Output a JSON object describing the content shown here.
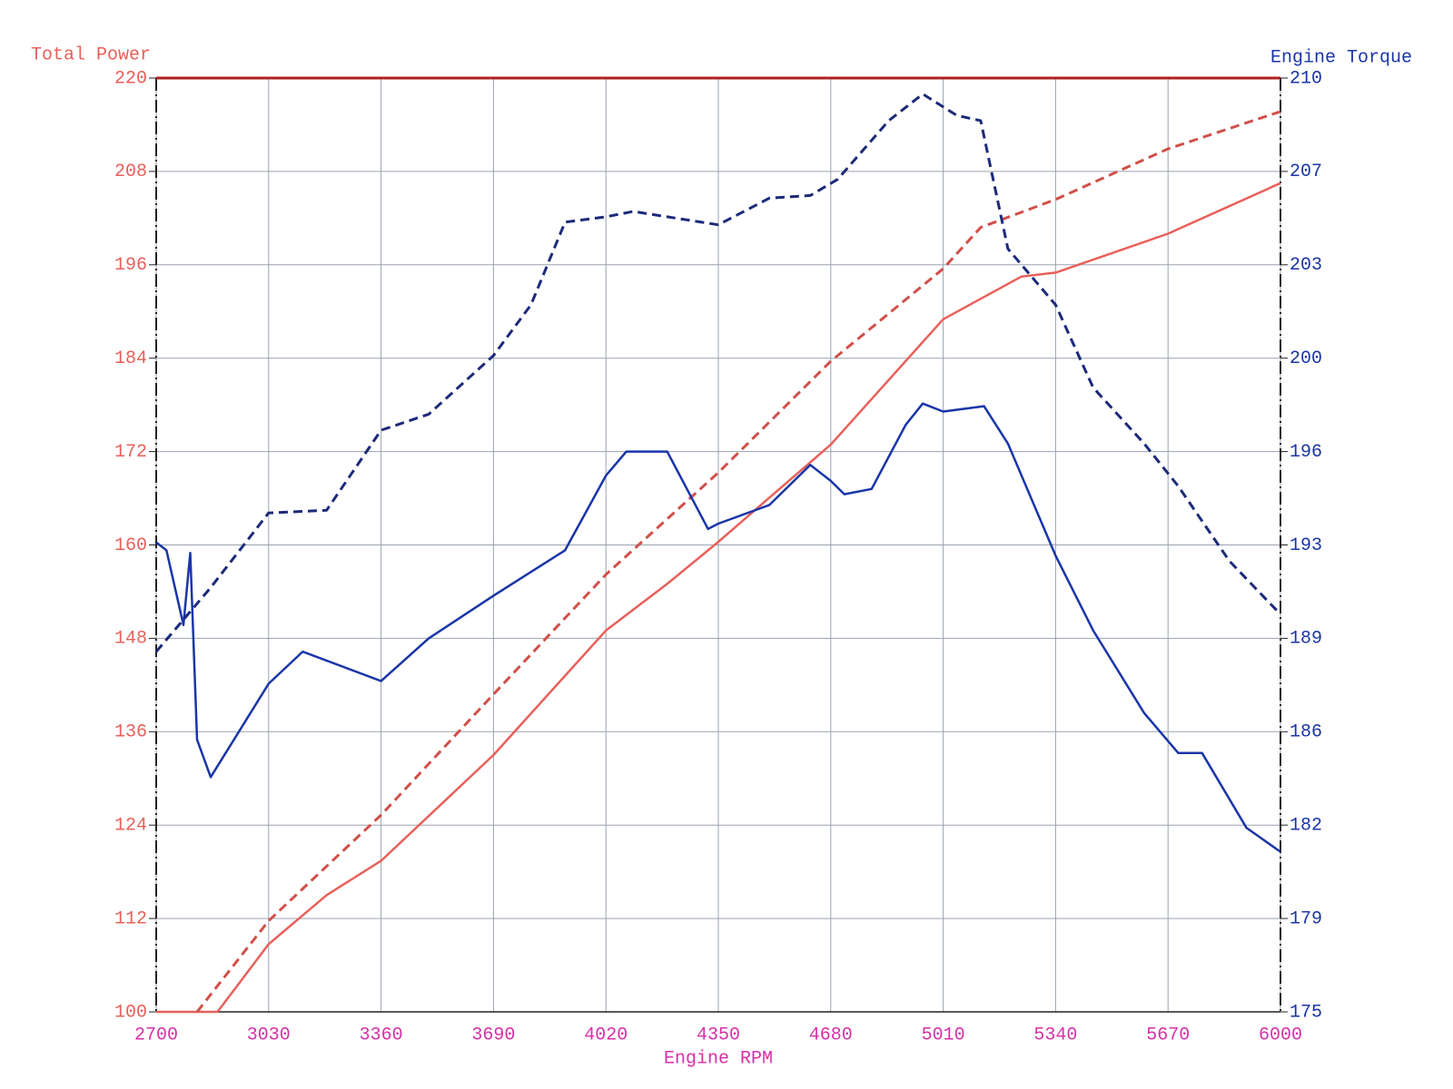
{
  "chart_data": {
    "type": "line",
    "ylabel": "Total Power",
    "y2label": "Engine Torque",
    "xlabel": "Engine RPM",
    "xlim": [
      2700,
      6000
    ],
    "xticks": [
      2700,
      3030,
      3360,
      3690,
      4020,
      4350,
      4680,
      5010,
      5340,
      5670,
      6000
    ],
    "ylim": [
      100,
      220
    ],
    "yticks": [
      100,
      112,
      124,
      136,
      148,
      160,
      172,
      184,
      196,
      208,
      220
    ],
    "y2lim": [
      175,
      210
    ],
    "y2ticks": [
      175,
      {
        "value": 178.5,
        "label": "179"
      },
      182,
      {
        "value": 185.5,
        "label": "186"
      },
      189,
      {
        "value": 192.5,
        "label": "193"
      },
      196,
      {
        "value": 199.5,
        "label": "200"
      },
      203,
      {
        "value": 206.5,
        "label": "207"
      },
      210
    ],
    "grid": true,
    "series": [
      {
        "color": "#e8605a",
        "dash": false,
        "axis": "y",
        "x": [
          2700,
          2800,
          2880,
          3030,
          3200,
          3360,
          3690,
          4020,
          4200,
          4350,
          4680,
          5010,
          5240,
          5340,
          5670,
          6000
        ],
        "values": [
          100,
          100,
          100,
          108.7,
          115,
          119.4,
          133,
          149,
          155,
          160.4,
          172.9,
          189,
          194.5,
          195,
          200,
          206.5
        ]
      },
      {
        "color": "#d0504a",
        "dash": true,
        "axis": "y",
        "x": [
          2820,
          3030,
          3360,
          3690,
          4020,
          4350,
          4680,
          5010,
          5120,
          5340,
          5670,
          6000
        ],
        "values": [
          100,
          111.7,
          125.3,
          140.8,
          156.2,
          169.3,
          183.6,
          195.5,
          200.8,
          204.4,
          210.9,
          215.7
        ]
      },
      {
        "color": "#1a35a8",
        "dash": false,
        "axis": "y2",
        "x": [
          2700,
          2730,
          2780,
          2800,
          2820,
          2860,
          3030,
          3130,
          3360,
          3500,
          3690,
          3900,
          4020,
          4080,
          4200,
          4320,
          4350,
          4500,
          4620,
          4680,
          4720,
          4800,
          4900,
          4950,
          5010,
          5130,
          5200,
          5340,
          5450,
          5600,
          5700,
          5770,
          5900,
          6000
        ],
        "values": [
          192.6,
          192.3,
          189.5,
          192.2,
          185.2,
          183.8,
          187.3,
          188.5,
          187.4,
          189,
          190.6,
          192.3,
          195.1,
          196,
          196,
          193.1,
          193.3,
          194,
          195.5,
          194.9,
          194.4,
          194.6,
          197,
          197.8,
          197.5,
          197.7,
          196.3,
          192.1,
          189.3,
          186.2,
          184.7,
          184.7,
          181.9,
          181
        ]
      },
      {
        "color": "#1c2a7a",
        "dash": true,
        "axis": "y2",
        "x": [
          2700,
          2860,
          3030,
          3200,
          3360,
          3500,
          3690,
          3800,
          3900,
          4020,
          4100,
          4200,
          4350,
          4500,
          4620,
          4700,
          4850,
          4950,
          5050,
          5120,
          5200,
          5340,
          5450,
          5600,
          5700,
          5850,
          6000
        ],
        "values": [
          188.5,
          190.9,
          193.7,
          193.8,
          196.8,
          197.4,
          199.6,
          201.5,
          204.6,
          204.8,
          205,
          204.8,
          204.5,
          205.5,
          205.6,
          206.2,
          208.4,
          209.4,
          208.6,
          208.4,
          203.6,
          201.5,
          198.4,
          196.3,
          194.7,
          191.9,
          189.9
        ]
      }
    ]
  }
}
